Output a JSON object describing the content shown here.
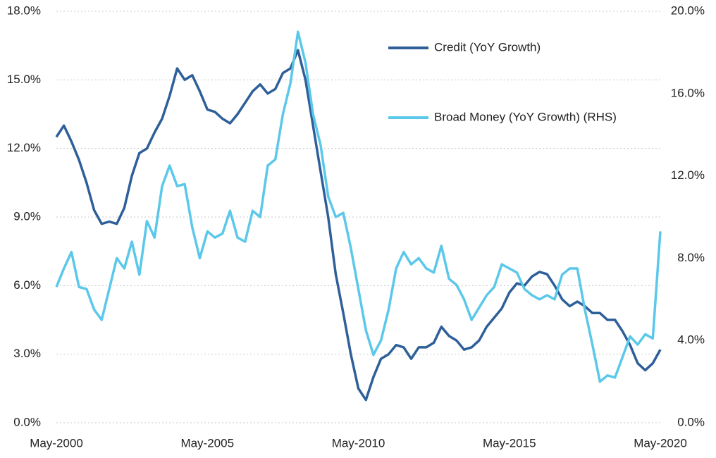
{
  "chart_data": {
    "type": "line",
    "x": [
      "May-2000",
      "Aug-2000",
      "Nov-2000",
      "Feb-2001",
      "May-2001",
      "Aug-2001",
      "Nov-2001",
      "Feb-2002",
      "May-2002",
      "Aug-2002",
      "Nov-2002",
      "Feb-2003",
      "May-2003",
      "Aug-2003",
      "Nov-2003",
      "Feb-2004",
      "May-2004",
      "Aug-2004",
      "Nov-2004",
      "Feb-2005",
      "May-2005",
      "Aug-2005",
      "Nov-2005",
      "Feb-2006",
      "May-2006",
      "Aug-2006",
      "Nov-2006",
      "Feb-2007",
      "May-2007",
      "Aug-2007",
      "Nov-2007",
      "Feb-2008",
      "May-2008",
      "Aug-2008",
      "Nov-2008",
      "Feb-2009",
      "May-2009",
      "Aug-2009",
      "Nov-2009",
      "Feb-2010",
      "May-2010",
      "Aug-2010",
      "Nov-2010",
      "Feb-2011",
      "May-2011",
      "Aug-2011",
      "Nov-2011",
      "Feb-2012",
      "May-2012",
      "Aug-2012",
      "Nov-2012",
      "Feb-2013",
      "May-2013",
      "Aug-2013",
      "Nov-2013",
      "Feb-2014",
      "May-2014",
      "Aug-2014",
      "Nov-2014",
      "Feb-2015",
      "May-2015",
      "Aug-2015",
      "Nov-2015",
      "Feb-2016",
      "May-2016",
      "Aug-2016",
      "Nov-2016",
      "Feb-2017",
      "May-2017",
      "Aug-2017",
      "Nov-2017",
      "Feb-2018",
      "May-2018",
      "Aug-2018",
      "Nov-2018",
      "Feb-2019",
      "May-2019",
      "Aug-2019",
      "Nov-2019",
      "Feb-2020",
      "May-2020"
    ],
    "series": [
      {
        "name": "Credit (YoY Growth)",
        "color": "#2e5f99",
        "axis": "y",
        "values": [
          12.5,
          13.0,
          12.3,
          11.5,
          10.5,
          9.3,
          8.7,
          8.8,
          8.7,
          9.4,
          10.8,
          11.8,
          12.0,
          12.7,
          13.3,
          14.3,
          15.5,
          15.0,
          15.2,
          14.5,
          13.7,
          13.6,
          13.3,
          13.1,
          13.5,
          14.0,
          14.5,
          14.8,
          14.4,
          14.6,
          15.3,
          15.5,
          16.3,
          15.0,
          13.0,
          11.0,
          9.0,
          6.5,
          4.8,
          3.0,
          1.5,
          1.0,
          2.0,
          2.8,
          3.0,
          3.4,
          3.3,
          2.8,
          3.3,
          3.3,
          3.5,
          4.2,
          3.8,
          3.6,
          3.2,
          3.3,
          3.6,
          4.2,
          4.6,
          5.0,
          5.7,
          6.1,
          6.0,
          6.4,
          6.6,
          6.5,
          6.0,
          5.4,
          5.1,
          5.3,
          5.1,
          4.8,
          4.8,
          4.5,
          4.5,
          4.0,
          3.4,
          2.6,
          2.3,
          2.6,
          3.2
        ]
      },
      {
        "name": "Broad Money (YoY Growth) (RHS)",
        "color": "#5bc8ea",
        "axis": "y2",
        "values": [
          6.6,
          7.5,
          8.3,
          6.6,
          6.5,
          5.5,
          5.0,
          6.5,
          8.0,
          7.5,
          8.8,
          7.2,
          9.8,
          9.0,
          11.5,
          12.5,
          11.5,
          11.6,
          9.5,
          8.0,
          9.3,
          9.0,
          9.2,
          10.3,
          9.0,
          8.8,
          10.3,
          10.0,
          12.5,
          12.8,
          15.0,
          16.5,
          19.0,
          17.5,
          15.0,
          13.5,
          11.0,
          10.0,
          10.2,
          8.5,
          6.5,
          4.5,
          3.3,
          4.0,
          5.5,
          7.5,
          8.3,
          7.7,
          8.0,
          7.5,
          7.3,
          8.6,
          7.0,
          6.7,
          6.0,
          5.0,
          5.6,
          6.2,
          6.6,
          7.7,
          7.5,
          7.3,
          6.5,
          6.2,
          6.0,
          6.2,
          6.0,
          7.2,
          7.5,
          7.5,
          5.5,
          3.8,
          2.0,
          2.3,
          2.2,
          3.2,
          4.2,
          3.8,
          4.3,
          4.1,
          9.3
        ]
      }
    ],
    "ylim": [
      0,
      18
    ],
    "yticks": [
      {
        "value": 0,
        "label": "0.0%"
      },
      {
        "value": 3,
        "label": "3.0%"
      },
      {
        "value": 6,
        "label": "6.0%"
      },
      {
        "value": 9,
        "label": "9.0%"
      },
      {
        "value": 12,
        "label": "12.0%"
      },
      {
        "value": 15,
        "label": "15.0%"
      },
      {
        "value": 18,
        "label": "18.0%"
      }
    ],
    "y2lim": [
      0,
      20
    ],
    "y2ticks": [
      {
        "value": 0,
        "label": "0.0%"
      },
      {
        "value": 4,
        "label": "4.0%"
      },
      {
        "value": 8,
        "label": "8.0%"
      },
      {
        "value": 12,
        "label": "12.0%"
      },
      {
        "value": 16,
        "label": "16.0%"
      },
      {
        "value": 20,
        "label": "20.0%"
      }
    ],
    "xticks": [
      "May-2000",
      "May-2005",
      "May-2010",
      "May-2015",
      "May-2020"
    ],
    "grid": true
  }
}
